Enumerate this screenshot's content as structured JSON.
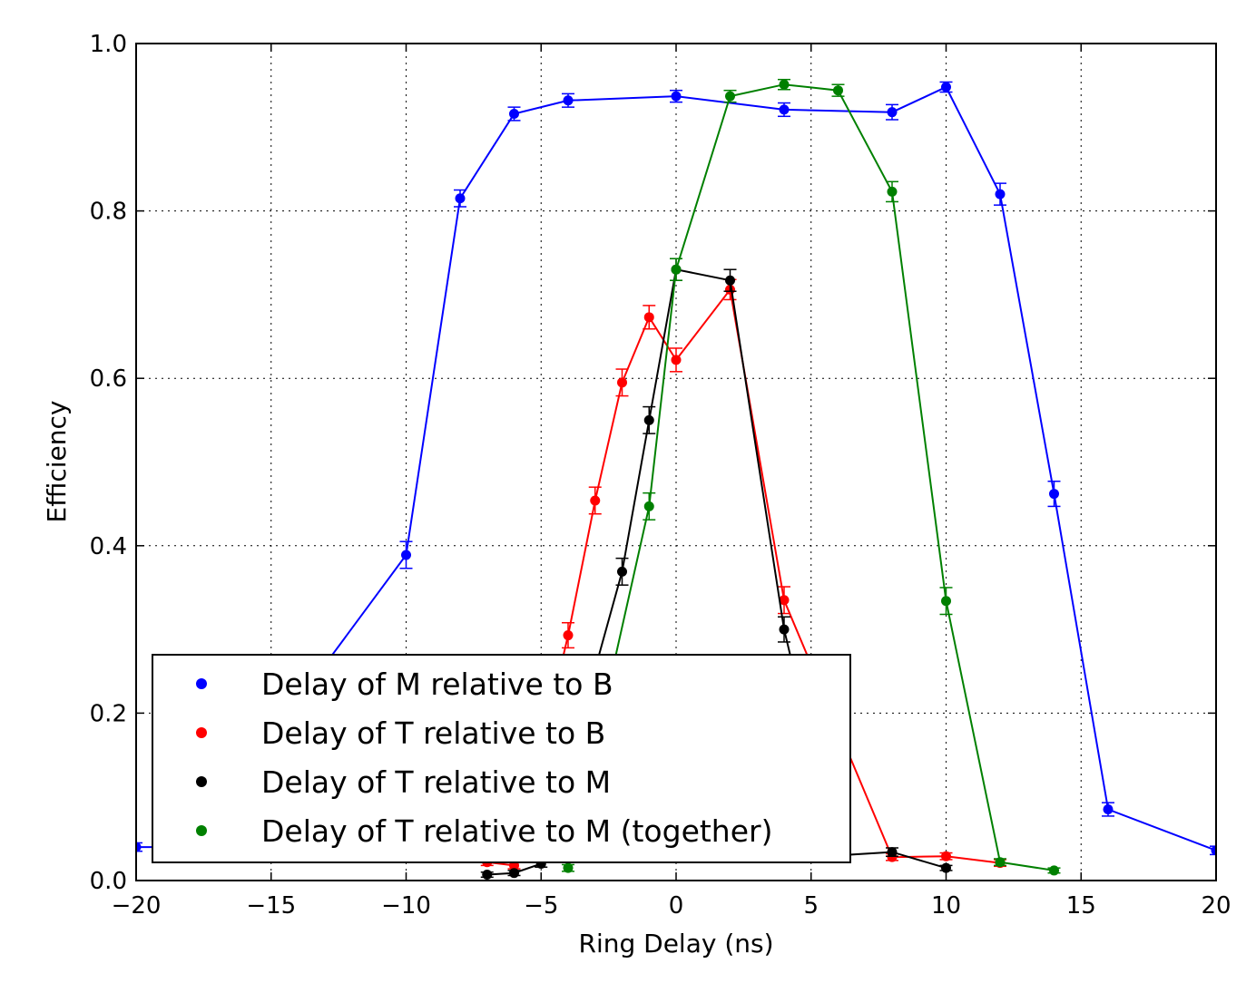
{
  "chart_data": {
    "type": "line",
    "title": "",
    "xlabel": "Ring Delay (ns)",
    "ylabel": "Efficiency",
    "xlim": [
      -20,
      20
    ],
    "ylim": [
      0.0,
      1.0
    ],
    "xticks": [
      -20,
      -15,
      -10,
      -5,
      0,
      5,
      10,
      15,
      20
    ],
    "xtick_labels": [
      "−20",
      "−15",
      "−10",
      "−5",
      "0",
      "5",
      "10",
      "15",
      "20"
    ],
    "yticks": [
      0.0,
      0.2,
      0.4,
      0.6,
      0.8,
      1.0
    ],
    "ytick_labels": [
      "0.0",
      "0.2",
      "0.4",
      "0.6",
      "0.8",
      "1.0"
    ],
    "grid": true,
    "legend_position": "lower-left",
    "series": [
      {
        "name": "Delay of M relative to B",
        "color": "#0000ff",
        "points": [
          {
            "x": -20,
            "y": 0.04,
            "err": 0.005
          },
          {
            "x": -18,
            "y": 0.04,
            "err": 0.005
          },
          {
            "x": -10,
            "y": 0.389,
            "err": 0.016
          },
          {
            "x": -8,
            "y": 0.815,
            "err": 0.01
          },
          {
            "x": -6,
            "y": 0.916,
            "err": 0.008
          },
          {
            "x": -4,
            "y": 0.932,
            "err": 0.008
          },
          {
            "x": 0,
            "y": 0.937,
            "err": 0.007
          },
          {
            "x": 4,
            "y": 0.921,
            "err": 0.008
          },
          {
            "x": 8,
            "y": 0.918,
            "err": 0.009
          },
          {
            "x": 10,
            "y": 0.948,
            "err": 0.006
          },
          {
            "x": 12,
            "y": 0.82,
            "err": 0.013
          },
          {
            "x": 14,
            "y": 0.462,
            "err": 0.015
          },
          {
            "x": 16,
            "y": 0.085,
            "err": 0.008
          },
          {
            "x": 20,
            "y": 0.036,
            "err": 0.005
          }
        ]
      },
      {
        "name": "Delay of T relative to B",
        "color": "#ff0000",
        "points": [
          {
            "x": -7,
            "y": 0.022,
            "err": 0.004
          },
          {
            "x": -6,
            "y": 0.018,
            "err": 0.004
          },
          {
            "x": -4,
            "y": 0.293,
            "err": 0.015
          },
          {
            "x": -3,
            "y": 0.454,
            "err": 0.016
          },
          {
            "x": -2,
            "y": 0.595,
            "err": 0.016
          },
          {
            "x": -1,
            "y": 0.673,
            "err": 0.014
          },
          {
            "x": 0,
            "y": 0.622,
            "err": 0.014
          },
          {
            "x": 2,
            "y": 0.706,
            "err": 0.012
          },
          {
            "x": 4,
            "y": 0.335,
            "err": 0.016
          },
          {
            "x": 8,
            "y": 0.028,
            "err": 0.004
          },
          {
            "x": 10,
            "y": 0.029,
            "err": 0.004
          },
          {
            "x": 12,
            "y": 0.021,
            "err": 0.004
          }
        ]
      },
      {
        "name": "Delay of T relative to M",
        "color": "#000000",
        "points": [
          {
            "x": -7,
            "y": 0.007,
            "err": 0.003
          },
          {
            "x": -6,
            "y": 0.009,
            "err": 0.003
          },
          {
            "x": -5,
            "y": 0.02,
            "err": 0.004
          },
          {
            "x": -2,
            "y": 0.369,
            "err": 0.016
          },
          {
            "x": -1,
            "y": 0.55,
            "err": 0.016
          },
          {
            "x": 0,
            "y": 0.73,
            "err": 0.013
          },
          {
            "x": 2,
            "y": 0.717,
            "err": 0.013
          },
          {
            "x": 4,
            "y": 0.3,
            "err": 0.015
          },
          {
            "x": 6,
            "y": 0.03,
            "err": 0.004
          },
          {
            "x": 8,
            "y": 0.034,
            "err": 0.005
          },
          {
            "x": 10,
            "y": 0.015,
            "err": 0.003
          }
        ]
      },
      {
        "name": "Delay of T relative to M (together)",
        "color": "#008000",
        "points": [
          {
            "x": -4,
            "y": 0.015,
            "err": 0.004
          },
          {
            "x": -1,
            "y": 0.447,
            "err": 0.016
          },
          {
            "x": 0,
            "y": 0.73,
            "err": 0.013
          },
          {
            "x": 2,
            "y": 0.937,
            "err": 0.007
          },
          {
            "x": 4,
            "y": 0.951,
            "err": 0.006
          },
          {
            "x": 6,
            "y": 0.944,
            "err": 0.007
          },
          {
            "x": 8,
            "y": 0.823,
            "err": 0.012
          },
          {
            "x": 10,
            "y": 0.334,
            "err": 0.016
          },
          {
            "x": 12,
            "y": 0.022,
            "err": 0.004
          },
          {
            "x": 14,
            "y": 0.012,
            "err": 0.003
          }
        ]
      }
    ]
  }
}
